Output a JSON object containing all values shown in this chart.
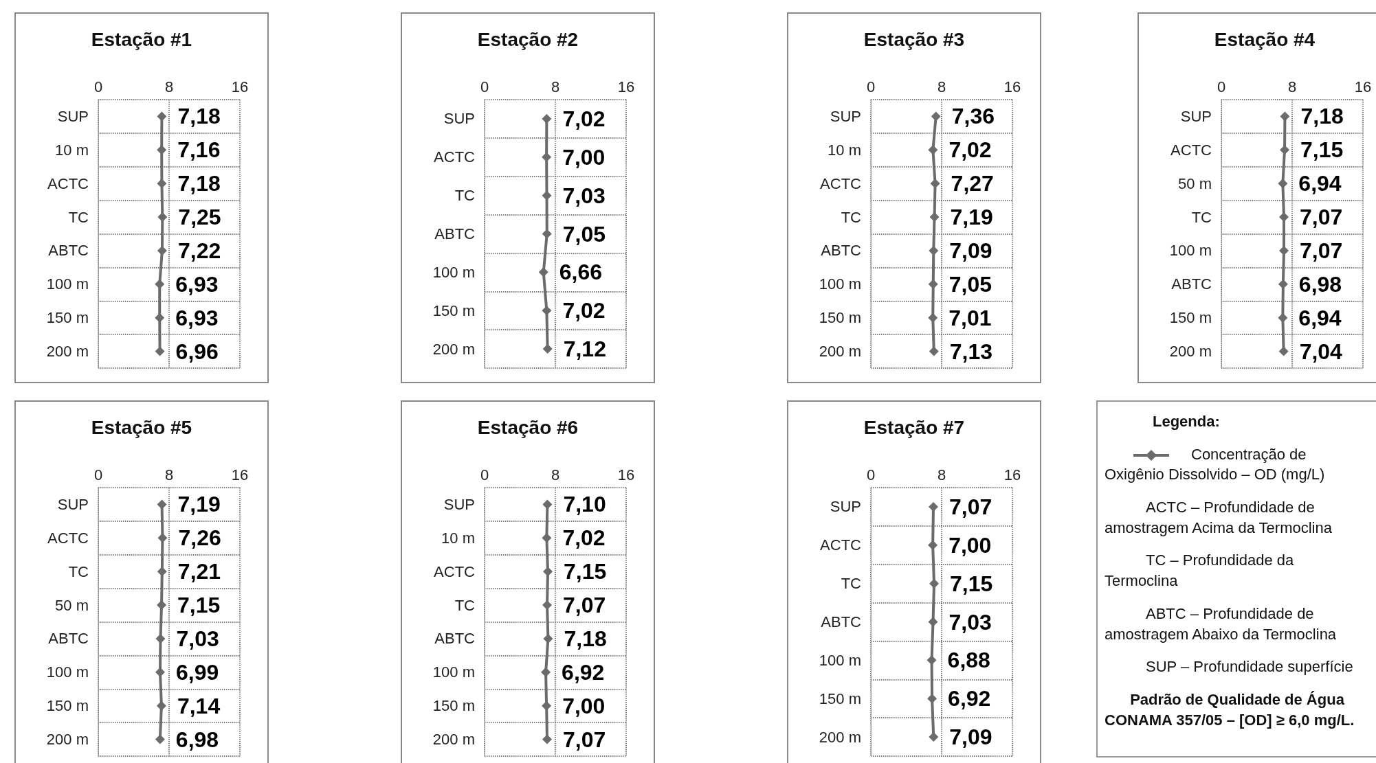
{
  "chart_data": [
    {
      "type": "line",
      "title": "Estação #1",
      "orientation": "horizontal",
      "categories": [
        "SUP",
        "10 m",
        "ACTC",
        "TC",
        "ABTC",
        "100 m",
        "150 m",
        "200 m"
      ],
      "values": [
        7.18,
        7.16,
        7.18,
        7.25,
        7.22,
        6.93,
        6.93,
        6.96
      ],
      "value_labels": [
        "7,18",
        "7,16",
        "7,18",
        "7,25",
        "7,22",
        "6,93",
        "6,93",
        "6,96"
      ],
      "color": "#6b6b6b",
      "marker": "diamond",
      "xlim": [
        0,
        16
      ],
      "xticks": [
        0,
        8,
        16
      ],
      "grid": true
    },
    {
      "type": "line",
      "title": "Estação #2",
      "orientation": "horizontal",
      "categories": [
        "SUP",
        "ACTC",
        "TC",
        "ABTC",
        "100 m",
        "150 m",
        "200 m"
      ],
      "values": [
        7.02,
        7.0,
        7.03,
        7.05,
        6.66,
        7.02,
        7.12
      ],
      "value_labels": [
        "7,02",
        "7,00",
        "7,03",
        "7,05",
        "6,66",
        "7,02",
        "7,12"
      ],
      "color": "#6b6b6b",
      "marker": "diamond",
      "xlim": [
        0,
        16
      ],
      "xticks": [
        0,
        8,
        16
      ],
      "grid": true
    },
    {
      "type": "line",
      "title": "Estação #3",
      "orientation": "horizontal",
      "categories": [
        "SUP",
        "10 m",
        "ACTC",
        "TC",
        "ABTC",
        "100 m",
        "150 m",
        "200 m"
      ],
      "values": [
        7.36,
        7.02,
        7.27,
        7.19,
        7.09,
        7.05,
        7.01,
        7.13
      ],
      "value_labels": [
        "7,36",
        "7,02",
        "7,27",
        "7,19",
        "7,09",
        "7,05",
        "7,01",
        "7,13"
      ],
      "color": "#6b6b6b",
      "marker": "diamond",
      "xlim": [
        0,
        16
      ],
      "xticks": [
        0,
        8,
        16
      ],
      "grid": true
    },
    {
      "type": "line",
      "title": "Estação #4",
      "orientation": "horizontal",
      "categories": [
        "SUP",
        "ACTC",
        "50 m",
        "TC",
        "100 m",
        "ABTC",
        "150 m",
        "200 m"
      ],
      "values": [
        7.18,
        7.15,
        6.94,
        7.07,
        7.07,
        6.98,
        6.94,
        7.04
      ],
      "value_labels": [
        "7,18",
        "7,15",
        "6,94",
        "7,07",
        "7,07",
        "6,98",
        "6,94",
        "7,04"
      ],
      "color": "#6b6b6b",
      "marker": "diamond",
      "xlim": [
        0,
        16
      ],
      "xticks": [
        0,
        8,
        16
      ],
      "grid": true
    },
    {
      "type": "line",
      "title": "Estação #5",
      "orientation": "horizontal",
      "categories": [
        "SUP",
        "ACTC",
        "TC",
        "50 m",
        "ABTC",
        "100 m",
        "150 m",
        "200 m"
      ],
      "values": [
        7.19,
        7.26,
        7.21,
        7.15,
        7.03,
        6.99,
        7.14,
        6.98
      ],
      "value_labels": [
        "7,19",
        "7,26",
        "7,21",
        "7,15",
        "7,03",
        "6,99",
        "7,14",
        "6,98"
      ],
      "color": "#6b6b6b",
      "marker": "diamond",
      "xlim": [
        0,
        16
      ],
      "xticks": [
        0,
        8,
        16
      ],
      "grid": true
    },
    {
      "type": "line",
      "title": "Estação #6",
      "orientation": "horizontal",
      "categories": [
        "SUP",
        "10 m",
        "ACTC",
        "TC",
        "ABTC",
        "100 m",
        "150 m",
        "200 m"
      ],
      "values": [
        7.1,
        7.02,
        7.15,
        7.07,
        7.18,
        6.92,
        7.0,
        7.07
      ],
      "value_labels": [
        "7,10",
        "7,02",
        "7,15",
        "7,07",
        "7,18",
        "6,92",
        "7,00",
        "7,07"
      ],
      "color": "#6b6b6b",
      "marker": "diamond",
      "xlim": [
        0,
        16
      ],
      "xticks": [
        0,
        8,
        16
      ],
      "grid": true
    },
    {
      "type": "line",
      "title": "Estação #7",
      "orientation": "horizontal",
      "categories": [
        "SUP",
        "ACTC",
        "TC",
        "ABTC",
        "100 m",
        "150 m",
        "200 m"
      ],
      "values": [
        7.07,
        7.0,
        7.15,
        7.03,
        6.88,
        6.92,
        7.09
      ],
      "value_labels": [
        "7,07",
        "7,00",
        "7,15",
        "7,03",
        "6,88",
        "6,92",
        "7,09"
      ],
      "color": "#6b6b6b",
      "marker": "diamond",
      "xlim": [
        0,
        16
      ],
      "xticks": [
        0,
        8,
        16
      ],
      "grid": true
    },
    {
      "type": "other",
      "title": "Legenda:",
      "color": "#6b6b6b",
      "annotations": [
        "Concentração de Oxigênio Dissolvido – OD (mg/L)",
        "ACTC – Profundidade de amostragem Acima da Termoclina",
        "TC – Profundidade da Termoclina",
        "ABTC – Profundidade de amostragem Abaixo da Termoclina",
        "SUP – Profundidade superfície",
        "Padrão de Qualidade de Água",
        "CONAMA 357/05 – [OD] ≥ 6,0 mg/L."
      ]
    }
  ]
}
